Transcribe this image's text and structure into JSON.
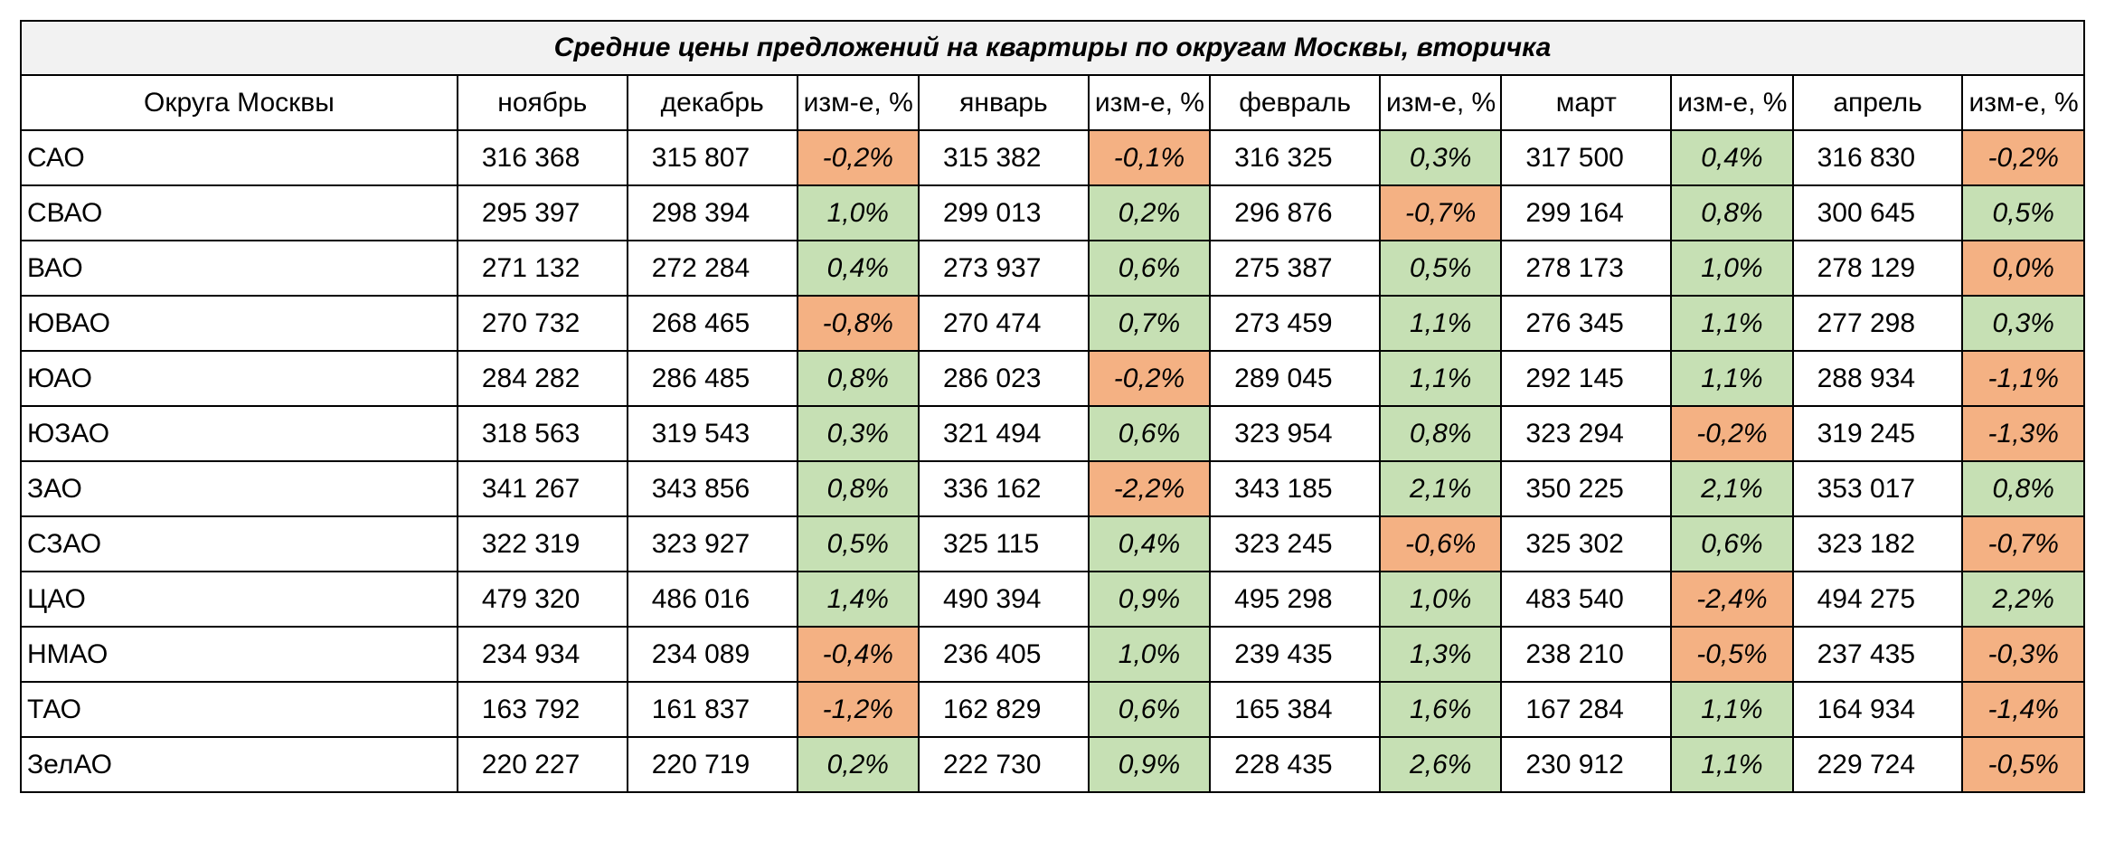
{
  "title": "Средние цены предложений на  квартиры по округам Москвы, вторичка",
  "headers": [
    "Округа Москвы",
    "ноябрь",
    "декабрь",
    "изм-е, %",
    "январь",
    "изм-е, %",
    "февраль",
    "изм-е, %",
    "март",
    "изм-е, %",
    "апрель",
    "изм-е, %"
  ],
  "colors": {
    "positive": "#c6e0b4",
    "negative": "#f4b183",
    "title_bg": "#f2f2f2"
  },
  "rows": [
    {
      "district": "САО",
      "nov": "316 368",
      "dec": "315 807",
      "ch_dec": "-0,2%",
      "jan": "315 382",
      "ch_jan": "-0,1%",
      "feb": "316 325",
      "ch_feb": "0,3%",
      "mar": "317 500",
      "ch_mar": "0,4%",
      "apr": "316 830",
      "ch_apr": "-0,2%"
    },
    {
      "district": "СВАО",
      "nov": "295 397",
      "dec": "298 394",
      "ch_dec": "1,0%",
      "jan": "299 013",
      "ch_jan": "0,2%",
      "feb": "296 876",
      "ch_feb": "-0,7%",
      "mar": "299 164",
      "ch_mar": "0,8%",
      "apr": "300 645",
      "ch_apr": "0,5%"
    },
    {
      "district": "ВАО",
      "nov": "271 132",
      "dec": "272 284",
      "ch_dec": "0,4%",
      "jan": "273 937",
      "ch_jan": "0,6%",
      "feb": "275 387",
      "ch_feb": "0,5%",
      "mar": "278 173",
      "ch_mar": "1,0%",
      "apr": "278 129",
      "ch_apr": "0,0%"
    },
    {
      "district": "ЮВАО",
      "nov": "270 732",
      "dec": "268 465",
      "ch_dec": "-0,8%",
      "jan": "270 474",
      "ch_jan": "0,7%",
      "feb": "273 459",
      "ch_feb": "1,1%",
      "mar": "276 345",
      "ch_mar": "1,1%",
      "apr": "277 298",
      "ch_apr": "0,3%"
    },
    {
      "district": "ЮАО",
      "nov": "284 282",
      "dec": "286 485",
      "ch_dec": "0,8%",
      "jan": "286 023",
      "ch_jan": "-0,2%",
      "feb": "289 045",
      "ch_feb": "1,1%",
      "mar": "292 145",
      "ch_mar": "1,1%",
      "apr": "288 934",
      "ch_apr": "-1,1%"
    },
    {
      "district": "ЮЗАО",
      "nov": "318 563",
      "dec": "319 543",
      "ch_dec": "0,3%",
      "jan": "321 494",
      "ch_jan": "0,6%",
      "feb": "323 954",
      "ch_feb": "0,8%",
      "mar": "323 294",
      "ch_mar": "-0,2%",
      "apr": "319 245",
      "ch_apr": "-1,3%"
    },
    {
      "district": "ЗАО",
      "nov": "341 267",
      "dec": "343 856",
      "ch_dec": "0,8%",
      "jan": "336 162",
      "ch_jan": "-2,2%",
      "feb": "343 185",
      "ch_feb": "2,1%",
      "mar": "350 225",
      "ch_mar": "2,1%",
      "apr": "353 017",
      "ch_apr": "0,8%"
    },
    {
      "district": "СЗАО",
      "nov": "322 319",
      "dec": "323 927",
      "ch_dec": "0,5%",
      "jan": "325 115",
      "ch_jan": "0,4%",
      "feb": "323 245",
      "ch_feb": "-0,6%",
      "mar": "325 302",
      "ch_mar": "0,6%",
      "apr": "323 182",
      "ch_apr": "-0,7%"
    },
    {
      "district": "ЦАО",
      "nov": "479 320",
      "dec": "486 016",
      "ch_dec": "1,4%",
      "jan": "490 394",
      "ch_jan": "0,9%",
      "feb": "495 298",
      "ch_feb": "1,0%",
      "mar": "483 540",
      "ch_mar": "-2,4%",
      "apr": "494 275",
      "ch_apr": "2,2%"
    },
    {
      "district": "НМАО",
      "nov": "234 934",
      "dec": "234 089",
      "ch_dec": "-0,4%",
      "jan": "236 405",
      "ch_jan": "1,0%",
      "feb": "239 435",
      "ch_feb": "1,3%",
      "mar": "238 210",
      "ch_mar": "-0,5%",
      "apr": "237 435",
      "ch_apr": "-0,3%"
    },
    {
      "district": "ТАО",
      "nov": "163 792",
      "dec": "161 837",
      "ch_dec": "-1,2%",
      "jan": "162 829",
      "ch_jan": "0,6%",
      "feb": "165 384",
      "ch_feb": "1,6%",
      "mar": "167 284",
      "ch_mar": "1,1%",
      "apr": "164 934",
      "ch_apr": "-1,4%"
    },
    {
      "district": "ЗелАО",
      "nov": "220 227",
      "dec": "220 719",
      "ch_dec": "0,2%",
      "jan": "222 730",
      "ch_jan": "0,9%",
      "feb": "228 435",
      "ch_feb": "2,6%",
      "mar": "230 912",
      "ch_mar": "1,1%",
      "apr": "229 724",
      "ch_apr": "-0,5%"
    }
  ]
}
